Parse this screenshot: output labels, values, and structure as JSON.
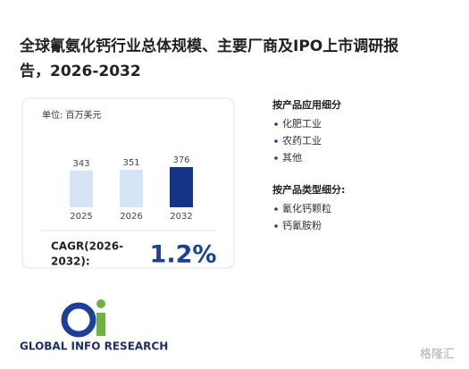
{
  "header": {
    "title_line1": "全球氰氨化钙行业总体规模、主要厂商及IPO上市调研报",
    "title_line2": "告，2026-2032"
  },
  "chart_data": {
    "type": "bar",
    "unit": "单位: 百万美元",
    "categories": [
      "2025",
      "2026",
      "2032"
    ],
    "values": [
      343,
      351,
      376
    ],
    "colors": [
      "#d5e5f7",
      "#d5e5f7",
      "#143489"
    ]
  },
  "cagr": {
    "label_line1": "CAGR(2026-",
    "label_line2": "2032):",
    "value": "1.2%"
  },
  "segments": [
    {
      "title": "按产品应用细分",
      "items": [
        "化肥工业",
        "农药工业",
        "其他"
      ]
    },
    {
      "title": "按产品类型细分:",
      "items": [
        "氰化钙颗粒",
        "钙氰胺粉"
      ]
    }
  ],
  "logo": {
    "text": "GLOBAL INFO RESEARCH"
  },
  "watermark": {
    "text": "格隆汇"
  }
}
